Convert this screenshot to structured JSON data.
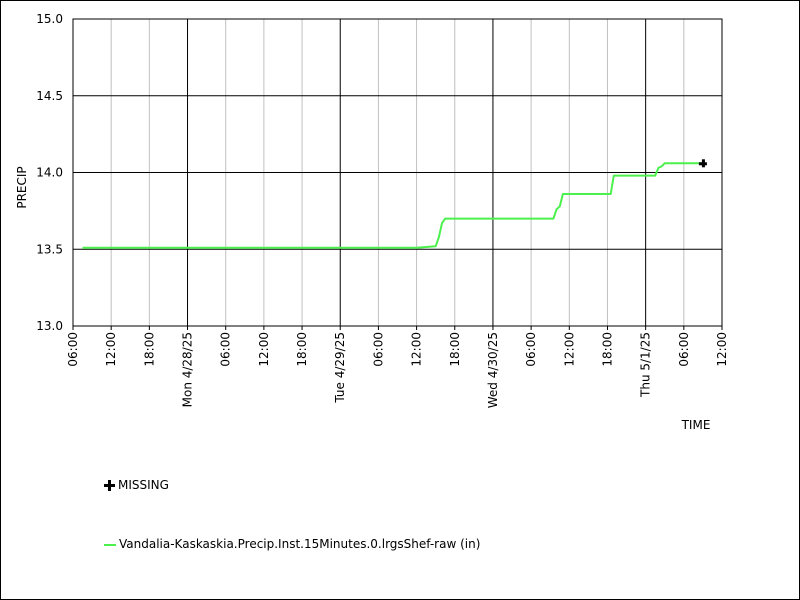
{
  "chart_data": {
    "type": "line",
    "ylabel": "PRECIP",
    "xlabel": "TIME",
    "ylim": [
      13.0,
      15.0
    ],
    "yticks": [
      13.0,
      13.5,
      14.0,
      14.5,
      15.0
    ],
    "ytick_labels": [
      "13.0",
      "13.5",
      "14.0",
      "14.5",
      "15.0"
    ],
    "xlim": [
      "2025-04-27T06:00",
      "2025-05-01T12:00"
    ],
    "xtick_labels": [
      "06:00",
      "12:00",
      "18:00",
      "Mon 4/28/25",
      "06:00",
      "12:00",
      "18:00",
      "Tue 4/29/25",
      "06:00",
      "12:00",
      "18:00",
      "Wed 4/30/25",
      "06:00",
      "12:00",
      "18:00",
      "Thu 5/1/25",
      "06:00",
      "12:00"
    ],
    "major_tick_labels": [
      "Mon 4/28/25",
      "Tue 4/29/25",
      "Wed 4/30/25",
      "Thu 5/1/25"
    ],
    "grid": true,
    "series": [
      {
        "name": "Vandalia-Kaskaskia.Precip.Inst.15Minutes.0.lrgsShef-raw (in)",
        "color": "#4cf04c",
        "points": [
          [
            "2025-04-27T07:30",
            13.51
          ],
          [
            "2025-04-29T12:00",
            13.51
          ],
          [
            "2025-04-29T15:00",
            13.52
          ],
          [
            "2025-04-29T15:30",
            13.58
          ],
          [
            "2025-04-29T16:00",
            13.67
          ],
          [
            "2025-04-29T16:30",
            13.7
          ],
          [
            "2025-04-30T09:30",
            13.7
          ],
          [
            "2025-04-30T10:00",
            13.76
          ],
          [
            "2025-04-30T10:30",
            13.78
          ],
          [
            "2025-04-30T11:00",
            13.86
          ],
          [
            "2025-04-30T18:30",
            13.86
          ],
          [
            "2025-04-30T19:00",
            13.98
          ],
          [
            "2025-05-01T01:30",
            13.98
          ],
          [
            "2025-05-01T02:00",
            14.03
          ],
          [
            "2025-05-01T02:30",
            14.04
          ],
          [
            "2025-05-01T03:00",
            14.06
          ],
          [
            "2025-05-01T09:00",
            14.06
          ]
        ]
      }
    ],
    "missing_points": [
      [
        "2025-05-01T09:00",
        14.06
      ]
    ]
  },
  "legend": {
    "missing_label": "MISSING",
    "series_label": "Vandalia-Kaskaskia.Precip.Inst.15Minutes.0.lrgsShef-raw (in)"
  }
}
